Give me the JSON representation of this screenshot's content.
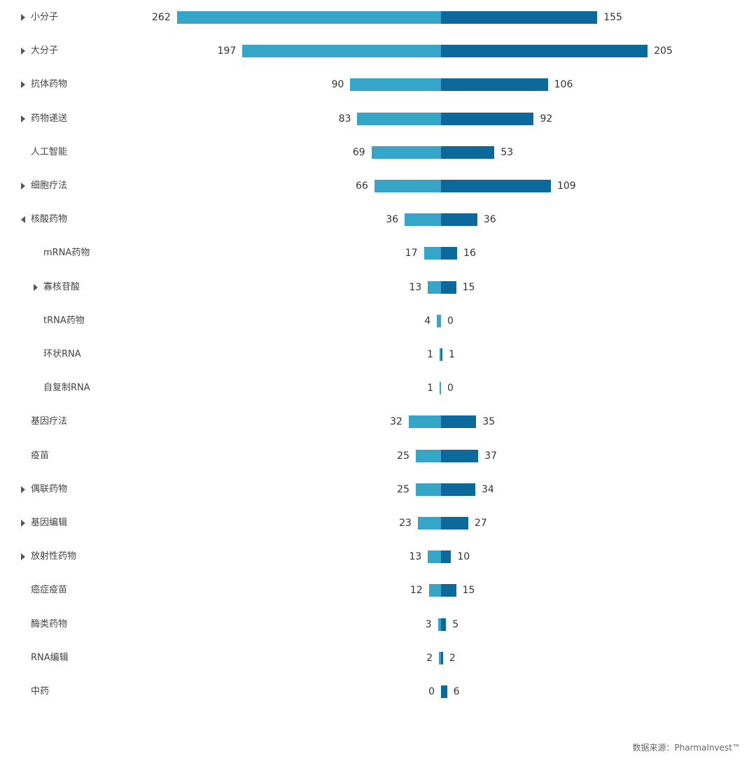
{
  "chart_data": {
    "type": "bar",
    "orientation": "horizontal-diverging",
    "colors": {
      "left_series": "#35a6c8",
      "right_series": "#0b6a9b"
    },
    "rows": [
      {
        "label": "小分子",
        "left": 262,
        "right": 155,
        "expandable": true,
        "expanded": false,
        "level": 0
      },
      {
        "label": "大分子",
        "left": 197,
        "right": 205,
        "expandable": true,
        "expanded": false,
        "level": 0
      },
      {
        "label": "抗体药物",
        "left": 90,
        "right": 106,
        "expandable": true,
        "expanded": false,
        "level": 0
      },
      {
        "label": "药物递送",
        "left": 83,
        "right": 92,
        "expandable": true,
        "expanded": false,
        "level": 0
      },
      {
        "label": "人工智能",
        "left": 69,
        "right": 53,
        "expandable": false,
        "expanded": false,
        "level": 0
      },
      {
        "label": "细胞疗法",
        "left": 66,
        "right": 109,
        "expandable": true,
        "expanded": false,
        "level": 0
      },
      {
        "label": "核酸药物",
        "left": 36,
        "right": 36,
        "expandable": true,
        "expanded": true,
        "level": 0
      },
      {
        "label": "mRNA药物",
        "left": 17,
        "right": 16,
        "expandable": false,
        "expanded": false,
        "level": 1
      },
      {
        "label": "寡核苷酸",
        "left": 13,
        "right": 15,
        "expandable": true,
        "expanded": false,
        "level": 1
      },
      {
        "label": "tRNA药物",
        "left": 4,
        "right": 0,
        "expandable": false,
        "expanded": false,
        "level": 1
      },
      {
        "label": "环状RNA",
        "left": 1,
        "right": 1,
        "expandable": false,
        "expanded": false,
        "level": 1
      },
      {
        "label": "自复制RNA",
        "left": 1,
        "right": 0,
        "expandable": false,
        "expanded": false,
        "level": 1
      },
      {
        "label": "基因疗法",
        "left": 32,
        "right": 35,
        "expandable": false,
        "expanded": false,
        "level": 0
      },
      {
        "label": "疫苗",
        "left": 25,
        "right": 37,
        "expandable": false,
        "expanded": false,
        "level": 0
      },
      {
        "label": "偶联药物",
        "left": 25,
        "right": 34,
        "expandable": true,
        "expanded": false,
        "level": 0
      },
      {
        "label": "基因编辑",
        "left": 23,
        "right": 27,
        "expandable": true,
        "expanded": false,
        "level": 0
      },
      {
        "label": "放射性药物",
        "left": 13,
        "right": 10,
        "expandable": true,
        "expanded": false,
        "level": 0
      },
      {
        "label": "癌症疫苗",
        "left": 12,
        "right": 15,
        "expandable": false,
        "expanded": false,
        "level": 0
      },
      {
        "label": "酶类药物",
        "left": 3,
        "right": 5,
        "expandable": false,
        "expanded": false,
        "level": 0
      },
      {
        "label": "RNA编辑",
        "left": 2,
        "right": 2,
        "expandable": false,
        "expanded": false,
        "level": 0
      },
      {
        "label": "中药",
        "left": 0,
        "right": 6,
        "expandable": false,
        "expanded": false,
        "level": 0
      }
    ]
  },
  "source": {
    "prefix": "数据来源：",
    "name": "PharmaInvest™"
  }
}
